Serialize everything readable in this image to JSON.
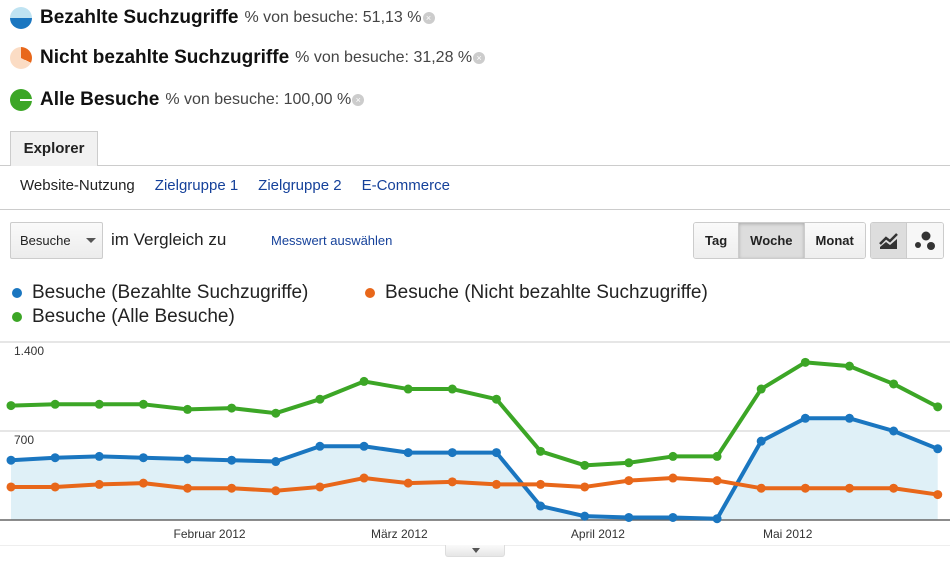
{
  "segments": [
    {
      "name": "Bezahlte Suchzugriffe",
      "pct": "% von besuche: 51,13 %",
      "icon": "segment-pie-icon",
      "colors": [
        "#bfe3f2",
        "#1a76c0"
      ]
    },
    {
      "name": "Nicht bezahlte Suchzugriffe",
      "pct": "% von besuche: 31,28 %",
      "icon": "segment-pie-icon",
      "colors": [
        "#fbdcc4",
        "#e8671a"
      ]
    },
    {
      "name": "Alle Besuche",
      "pct": "% von besuche: 100,00 %",
      "icon": "segment-pie-icon",
      "colors": [
        "#fff",
        "#3ca626"
      ]
    }
  ],
  "remove_icon": "×",
  "tab": "Explorer",
  "subnav": [
    "Website-Nutzung",
    "Zielgruppe 1",
    "Zielgruppe 2",
    "E-Commerce"
  ],
  "controls": {
    "metric": "Besuche",
    "compare": "im Vergleich zu",
    "select_metric": "Messwert auswählen",
    "periods": [
      "Tag",
      "Woche",
      "Monat"
    ],
    "active_period": "Woche"
  },
  "chart_data": {
    "type": "line",
    "y_ticks": [
      "1.400",
      "700"
    ],
    "ylim": [
      0,
      1400
    ],
    "x_ticks": [
      {
        "label": "Februar 2012",
        "week": 4.5
      },
      {
        "label": "März 2012",
        "week": 8.8
      },
      {
        "label": "April 2012",
        "week": 13.3
      },
      {
        "label": "Mai 2012",
        "week": 17.6
      }
    ],
    "grid": true,
    "legend": "top",
    "series": [
      {
        "name": "Besuche (Bezahlte Suchzugriffe)",
        "color": "#1a76c0",
        "fill": true,
        "values": [
          470,
          490,
          500,
          490,
          480,
          470,
          460,
          580,
          580,
          530,
          530,
          530,
          110,
          30,
          20,
          20,
          10,
          620,
          800,
          800,
          700,
          560
        ]
      },
      {
        "name": "Besuche (Nicht bezahlte Suchzugriffe)",
        "color": "#e8671a",
        "values": [
          260,
          260,
          280,
          290,
          250,
          250,
          230,
          260,
          330,
          290,
          300,
          280,
          280,
          260,
          310,
          330,
          310,
          250,
          250,
          250,
          250,
          200
        ]
      },
      {
        "name": "Besuche (Alle Besuche)",
        "color": "#3ca626",
        "values": [
          900,
          910,
          910,
          910,
          870,
          880,
          840,
          950,
          1090,
          1030,
          1030,
          950,
          540,
          430,
          450,
          500,
          500,
          1030,
          1240,
          1210,
          1070,
          890
        ]
      }
    ]
  }
}
